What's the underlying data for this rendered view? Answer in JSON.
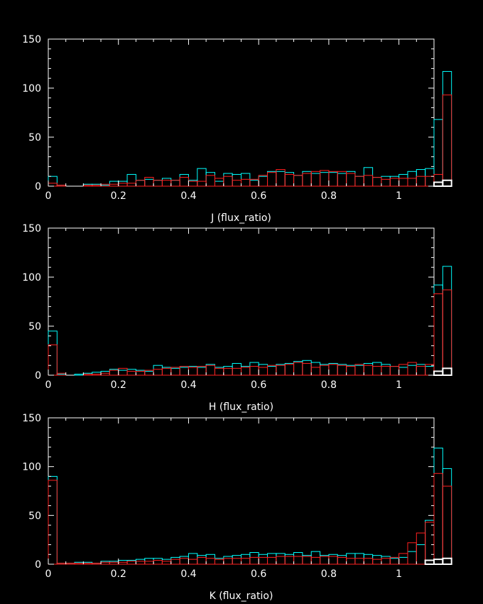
{
  "colors": {
    "background": "#000000",
    "axes": "#ffffff",
    "cyan": "#00ffff",
    "red": "#ff2020",
    "white": "#ffffff"
  },
  "chart_data": [
    {
      "type": "histogram",
      "xlabel": "J (flux_ratio)",
      "xlim": [
        0,
        1.1
      ],
      "ylim": [
        0,
        150
      ],
      "x_ticks": [
        "0",
        "0.2",
        "0.4",
        "0.6",
        "0.8",
        "1"
      ],
      "y_ticks": [
        "0",
        "50",
        "100",
        "150"
      ],
      "bin_width": 0.025,
      "series": [
        {
          "color": "cyan",
          "values": [
            10,
            1,
            0,
            0,
            2,
            2,
            1,
            5,
            5,
            12,
            6,
            7,
            6,
            8,
            6,
            12,
            6,
            18,
            14,
            5,
            13,
            12,
            13,
            6,
            10,
            15,
            15,
            14,
            11,
            15,
            13,
            14,
            14,
            13,
            15,
            10,
            19,
            9,
            10,
            10,
            12,
            15,
            17,
            18,
            68,
            117
          ]
        },
        {
          "color": "red",
          "values": [
            3,
            1,
            0,
            0,
            1,
            1,
            2,
            2,
            3,
            3,
            6,
            9,
            6,
            6,
            6,
            9,
            5,
            5,
            11,
            8,
            10,
            6,
            7,
            7,
            11,
            14,
            17,
            12,
            11,
            13,
            15,
            16,
            15,
            15,
            13,
            10,
            11,
            9,
            7,
            8,
            8,
            8,
            10,
            10,
            12,
            93
          ]
        },
        {
          "color": "white",
          "values": [
            0,
            0,
            0,
            0,
            0,
            0,
            0,
            0,
            0,
            0,
            0,
            0,
            0,
            0,
            0,
            0,
            0,
            0,
            0,
            0,
            0,
            0,
            0,
            0,
            0,
            0,
            0,
            0,
            0,
            0,
            0,
            0,
            0,
            0,
            0,
            0,
            0,
            0,
            0,
            0,
            0,
            0,
            0,
            0,
            4,
            6
          ]
        }
      ]
    },
    {
      "type": "histogram",
      "xlabel": "H (flux_ratio)",
      "xlim": [
        0,
        1.1
      ],
      "ylim": [
        0,
        150
      ],
      "x_ticks": [
        "0",
        "0.2",
        "0.4",
        "0.6",
        "0.8",
        "1"
      ],
      "y_ticks": [
        "0",
        "50",
        "100",
        "150"
      ],
      "bin_width": 0.025,
      "series": [
        {
          "color": "cyan",
          "values": [
            45,
            1,
            0,
            1,
            2,
            3,
            4,
            6,
            5,
            6,
            5,
            4,
            10,
            8,
            7,
            8,
            9,
            8,
            11,
            8,
            9,
            12,
            9,
            13,
            11,
            9,
            11,
            12,
            14,
            15,
            13,
            11,
            12,
            11,
            10,
            10,
            12,
            13,
            11,
            9,
            8,
            10,
            11,
            9,
            92,
            111
          ]
        },
        {
          "color": "red",
          "values": [
            31,
            2,
            0,
            0,
            1,
            1,
            2,
            5,
            7,
            4,
            4,
            5,
            6,
            7,
            8,
            9,
            8,
            9,
            10,
            7,
            7,
            7,
            8,
            9,
            8,
            10,
            10,
            11,
            13,
            12,
            8,
            10,
            11,
            10,
            9,
            11,
            10,
            9,
            9,
            9,
            11,
            13,
            9,
            11,
            83,
            87
          ]
        },
        {
          "color": "white",
          "values": [
            0,
            0,
            0,
            0,
            0,
            0,
            0,
            0,
            0,
            0,
            0,
            0,
            0,
            0,
            0,
            0,
            0,
            0,
            0,
            0,
            0,
            0,
            0,
            0,
            0,
            0,
            0,
            0,
            0,
            0,
            0,
            0,
            0,
            0,
            0,
            0,
            0,
            0,
            0,
            0,
            0,
            0,
            0,
            0,
            4,
            7
          ]
        }
      ]
    },
    {
      "type": "histogram",
      "xlabel": "K (flux_ratio)",
      "xlim": [
        0,
        1.1
      ],
      "ylim": [
        0,
        150
      ],
      "x_ticks": [
        "0",
        "0.2",
        "0.4",
        "0.6",
        "0.8",
        "1"
      ],
      "y_ticks": [
        "0",
        "50",
        "100",
        "150"
      ],
      "bin_width": 0.025,
      "series": [
        {
          "color": "cyan",
          "values": [
            90,
            1,
            1,
            2,
            2,
            1,
            3,
            3,
            4,
            4,
            5,
            6,
            6,
            5,
            7,
            8,
            11,
            9,
            10,
            6,
            8,
            9,
            10,
            12,
            10,
            11,
            11,
            10,
            12,
            9,
            13,
            9,
            10,
            9,
            11,
            11,
            10,
            9,
            8,
            6,
            7,
            13,
            20,
            45,
            119,
            98
          ]
        },
        {
          "color": "red",
          "values": [
            86,
            1,
            1,
            1,
            1,
            1,
            2,
            2,
            2,
            3,
            3,
            3,
            4,
            3,
            5,
            6,
            5,
            7,
            6,
            5,
            6,
            6,
            6,
            7,
            7,
            7,
            8,
            8,
            8,
            8,
            7,
            8,
            8,
            7,
            6,
            6,
            6,
            5,
            6,
            7,
            11,
            22,
            32,
            43,
            93,
            80
          ]
        },
        {
          "color": "white",
          "values": [
            0,
            0,
            0,
            0,
            0,
            0,
            0,
            0,
            0,
            0,
            0,
            0,
            0,
            0,
            0,
            0,
            0,
            0,
            0,
            0,
            0,
            0,
            0,
            0,
            0,
            0,
            0,
            0,
            0,
            0,
            0,
            0,
            0,
            0,
            0,
            0,
            0,
            0,
            0,
            0,
            0,
            0,
            0,
            4,
            5,
            6
          ]
        }
      ]
    }
  ]
}
